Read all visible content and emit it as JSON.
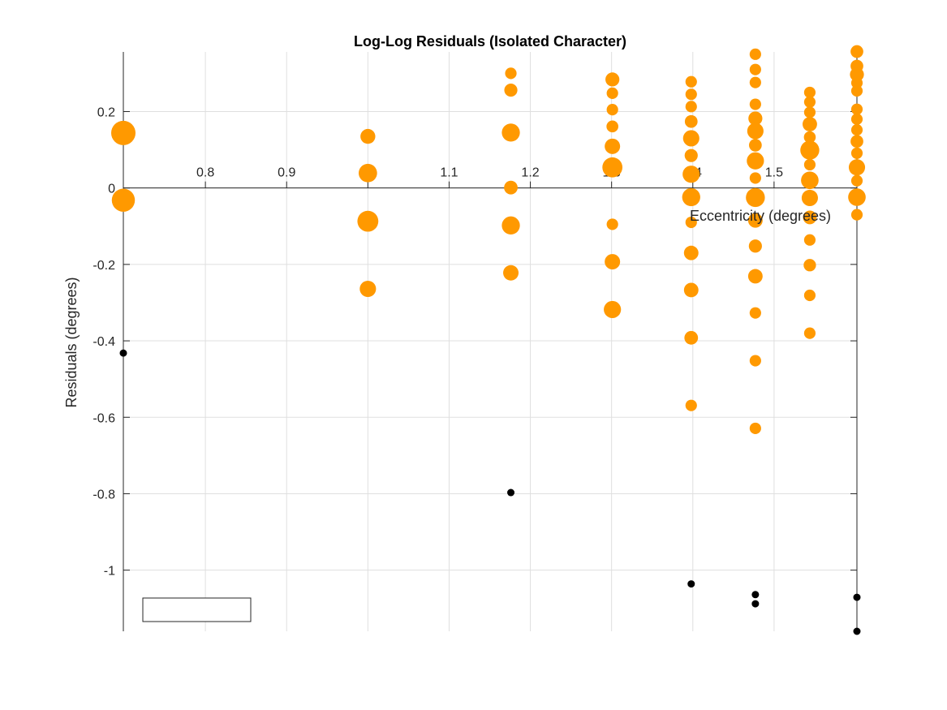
{
  "chart_data": {
    "type": "scatter",
    "title": "Log-Log Residuals (Isolated Character)",
    "xlabel": "Eccentricity (degrees)",
    "ylabel": "Residuals (degrees)",
    "xlim": [
      0.699,
      1.602
    ],
    "ylim": [
      -1.16,
      0.356
    ],
    "xticks": [
      0.8,
      0.9,
      1.0,
      1.1,
      1.2,
      1.3,
      1.4,
      1.5
    ],
    "xtick_labels": [
      "0.8",
      "0.9",
      "",
      "1.1",
      "1.2",
      "1.3",
      "1.4",
      "1.5"
    ],
    "yticks": [
      -1.0,
      -0.8,
      -0.6,
      -0.4,
      -0.2,
      0,
      0.2
    ],
    "ytick_labels": [
      "-1",
      "-0.8",
      "-0.6",
      "-0.4",
      "-0.2",
      "0",
      "0.2"
    ],
    "grid": true,
    "legend": {
      "placement": "bottom-left",
      "entries": []
    },
    "colors": {
      "included": "#ff9900",
      "excluded": "#000000",
      "grid": "#dfdfdf",
      "axis": "#262626"
    },
    "series": [
      {
        "points": [
          {
            "x": 0.699,
            "y": 0.144,
            "size": 1.0
          },
          {
            "x": 0.699,
            "y": -0.032,
            "size": 0.93
          },
          {
            "x": 1.0,
            "y": 0.135,
            "size": 0.47
          },
          {
            "x": 1.0,
            "y": 0.039,
            "size": 0.67
          },
          {
            "x": 1.0,
            "y": -0.087,
            "size": 0.81
          },
          {
            "x": 1.0,
            "y": -0.264,
            "size": 0.55
          },
          {
            "x": 1.176,
            "y": 0.3,
            "size": 0.28
          },
          {
            "x": 1.176,
            "y": 0.256,
            "size": 0.37
          },
          {
            "x": 1.176,
            "y": 0.145,
            "size": 0.65
          },
          {
            "x": 1.176,
            "y": 0.001,
            "size": 0.4
          },
          {
            "x": 1.176,
            "y": -0.098,
            "size": 0.65
          },
          {
            "x": 1.176,
            "y": -0.222,
            "size": 0.5
          },
          {
            "x": 1.301,
            "y": 0.284,
            "size": 0.42
          },
          {
            "x": 1.301,
            "y": 0.248,
            "size": 0.28
          },
          {
            "x": 1.301,
            "y": 0.205,
            "size": 0.28
          },
          {
            "x": 1.301,
            "y": 0.161,
            "size": 0.3
          },
          {
            "x": 1.301,
            "y": 0.109,
            "size": 0.5
          },
          {
            "x": 1.301,
            "y": 0.054,
            "size": 0.76
          },
          {
            "x": 1.301,
            "y": -0.095,
            "size": 0.28
          },
          {
            "x": 1.301,
            "y": -0.193,
            "size": 0.5
          },
          {
            "x": 1.301,
            "y": -0.318,
            "size": 0.6
          },
          {
            "x": 1.398,
            "y": 0.278,
            "size": 0.28
          },
          {
            "x": 1.398,
            "y": 0.245,
            "size": 0.28
          },
          {
            "x": 1.398,
            "y": 0.213,
            "size": 0.28
          },
          {
            "x": 1.398,
            "y": 0.174,
            "size": 0.35
          },
          {
            "x": 1.398,
            "y": 0.13,
            "size": 0.55
          },
          {
            "x": 1.398,
            "y": 0.085,
            "size": 0.37
          },
          {
            "x": 1.398,
            "y": 0.036,
            "size": 0.6
          },
          {
            "x": 1.398,
            "y": -0.024,
            "size": 0.65
          },
          {
            "x": 1.398,
            "y": -0.09,
            "size": 0.28
          },
          {
            "x": 1.398,
            "y": -0.17,
            "size": 0.45
          },
          {
            "x": 1.398,
            "y": -0.267,
            "size": 0.45
          },
          {
            "x": 1.398,
            "y": -0.392,
            "size": 0.4
          },
          {
            "x": 1.398,
            "y": -0.569,
            "size": 0.28
          },
          {
            "x": 1.477,
            "y": 0.35,
            "size": 0.28
          },
          {
            "x": 1.477,
            "y": 0.31,
            "size": 0.28
          },
          {
            "x": 1.477,
            "y": 0.276,
            "size": 0.28
          },
          {
            "x": 1.477,
            "y": 0.219,
            "size": 0.28
          },
          {
            "x": 1.477,
            "y": 0.182,
            "size": 0.42
          },
          {
            "x": 1.477,
            "y": 0.149,
            "size": 0.55
          },
          {
            "x": 1.477,
            "y": 0.112,
            "size": 0.35
          },
          {
            "x": 1.477,
            "y": 0.071,
            "size": 0.6
          },
          {
            "x": 1.477,
            "y": 0.026,
            "size": 0.28
          },
          {
            "x": 1.477,
            "y": -0.025,
            "size": 0.7
          },
          {
            "x": 1.477,
            "y": -0.085,
            "size": 0.45
          },
          {
            "x": 1.477,
            "y": -0.152,
            "size": 0.37
          },
          {
            "x": 1.477,
            "y": -0.231,
            "size": 0.45
          },
          {
            "x": 1.477,
            "y": -0.327,
            "size": 0.28
          },
          {
            "x": 1.477,
            "y": -0.452,
            "size": 0.28
          },
          {
            "x": 1.477,
            "y": -0.629,
            "size": 0.28
          },
          {
            "x": 1.544,
            "y": 0.25,
            "size": 0.28
          },
          {
            "x": 1.544,
            "y": 0.225,
            "size": 0.28
          },
          {
            "x": 1.544,
            "y": 0.198,
            "size": 0.28
          },
          {
            "x": 1.544,
            "y": 0.167,
            "size": 0.45
          },
          {
            "x": 1.544,
            "y": 0.133,
            "size": 0.3
          },
          {
            "x": 1.544,
            "y": 0.099,
            "size": 0.7
          },
          {
            "x": 1.544,
            "y": 0.061,
            "size": 0.28
          },
          {
            "x": 1.544,
            "y": 0.02,
            "size": 0.62
          },
          {
            "x": 1.544,
            "y": -0.026,
            "size": 0.55
          },
          {
            "x": 1.544,
            "y": -0.077,
            "size": 0.4
          },
          {
            "x": 1.544,
            "y": -0.136,
            "size": 0.28
          },
          {
            "x": 1.544,
            "y": -0.202,
            "size": 0.33
          },
          {
            "x": 1.544,
            "y": -0.281,
            "size": 0.28
          },
          {
            "x": 1.544,
            "y": -0.38,
            "size": 0.28
          },
          {
            "x": 1.602,
            "y": 0.357,
            "size": 0.35
          },
          {
            "x": 1.602,
            "y": 0.319,
            "size": 0.35
          },
          {
            "x": 1.602,
            "y": 0.297,
            "size": 0.42
          },
          {
            "x": 1.602,
            "y": 0.275,
            "size": 0.28
          },
          {
            "x": 1.602,
            "y": 0.254,
            "size": 0.28
          },
          {
            "x": 1.602,
            "y": 0.206,
            "size": 0.28
          },
          {
            "x": 1.602,
            "y": 0.18,
            "size": 0.28
          },
          {
            "x": 1.602,
            "y": 0.152,
            "size": 0.28
          },
          {
            "x": 1.602,
            "y": 0.122,
            "size": 0.35
          },
          {
            "x": 1.602,
            "y": 0.091,
            "size": 0.28
          },
          {
            "x": 1.602,
            "y": 0.054,
            "size": 0.55
          },
          {
            "x": 1.602,
            "y": 0.019,
            "size": 0.28
          },
          {
            "x": 1.602,
            "y": -0.024,
            "size": 0.62
          },
          {
            "x": 1.602,
            "y": -0.07,
            "size": 0.28
          }
        ],
        "color": "#ff9900"
      },
      {
        "points": [
          {
            "x": 0.699,
            "y": -0.432
          },
          {
            "x": 1.176,
            "y": -0.797
          },
          {
            "x": 1.398,
            "y": -1.036
          },
          {
            "x": 1.477,
            "y": -1.064
          },
          {
            "x": 1.477,
            "y": -1.088
          },
          {
            "x": 1.602,
            "y": -1.071
          },
          {
            "x": 1.602,
            "y": -1.16
          }
        ],
        "color": "#000000"
      }
    ]
  }
}
